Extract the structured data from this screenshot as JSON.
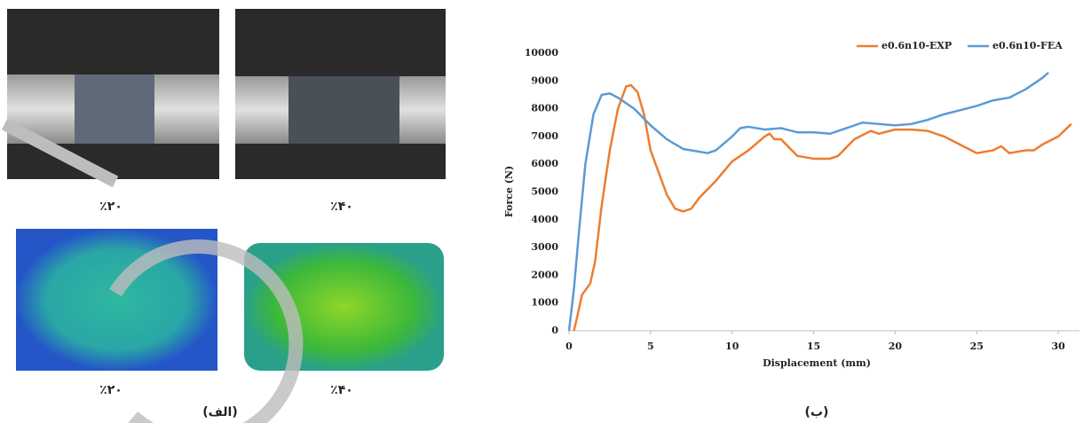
{
  "figure": {
    "left_labels": [
      "٪۲۰",
      "٪۴۰",
      "٪۲۰",
      "٪۴۰"
    ],
    "left_caption": "(الف)",
    "right_caption": "(ب)"
  },
  "chart_data": {
    "type": "line",
    "x_label": "Displacement (mm)",
    "y_label": "Force (N)",
    "xlim": [
      0,
      31.3
    ],
    "xticks": [
      0,
      5,
      10,
      15,
      20,
      25,
      30
    ],
    "ylim": [
      0,
      10000
    ],
    "yticks": [
      0,
      1000,
      2000,
      3000,
      4000,
      5000,
      6000,
      7000,
      8000,
      9000,
      10000
    ],
    "grid": false,
    "legend": "top-right",
    "series": [
      {
        "name": "e0.6n10-EXP",
        "color": "#ed7d31",
        "x": [
          0.3,
          0.5,
          0.8,
          1.3,
          1.6,
          2.0,
          2.5,
          3.0,
          3.5,
          3.8,
          4.2,
          4.6,
          5.0,
          5.5,
          6.0,
          6.5,
          7.0,
          7.5,
          8.0,
          9.0,
          10.0,
          11.0,
          12.0,
          12.3,
          12.6,
          13.0,
          14.0,
          15.0,
          16.0,
          16.5,
          17.5,
          18.5,
          19.0,
          20.0,
          21.0,
          22.0,
          23.0,
          24.0,
          25.0,
          26.0,
          26.5,
          27.0,
          28.0,
          28.5,
          29.0,
          30.0,
          30.8
        ],
        "values": [
          0,
          500,
          1300,
          1700,
          2500,
          4500,
          6500,
          8000,
          8800,
          8850,
          8600,
          7800,
          6500,
          5700,
          4900,
          4400,
          4300,
          4400,
          4800,
          5400,
          6100,
          6500,
          7000,
          7100,
          6900,
          6900,
          6300,
          6200,
          6200,
          6300,
          6900,
          7200,
          7100,
          7250,
          7250,
          7200,
          7000,
          6700,
          6400,
          6500,
          6650,
          6400,
          6500,
          6500,
          6700,
          7000,
          7450
        ]
      },
      {
        "name": "e0.6n10-FEA",
        "color": "#5b9bd5",
        "x": [
          0,
          0.3,
          0.6,
          1.0,
          1.5,
          2.0,
          2.5,
          3.0,
          4.0,
          5.0,
          6.0,
          7.0,
          8.0,
          8.5,
          9.0,
          10.0,
          10.5,
          11.0,
          12.0,
          13.0,
          14.0,
          15.0,
          16.0,
          17.0,
          18.0,
          19.0,
          20.0,
          21.0,
          22.0,
          23.0,
          24.0,
          25.0,
          26.0,
          27.0,
          28.0,
          29.0,
          29.4
        ],
        "values": [
          0,
          1500,
          3500,
          6000,
          7800,
          8500,
          8550,
          8400,
          8000,
          7400,
          6900,
          6550,
          6450,
          6400,
          6500,
          7000,
          7300,
          7350,
          7250,
          7300,
          7150,
          7150,
          7100,
          7300,
          7500,
          7450,
          7400,
          7450,
          7600,
          7800,
          7950,
          8100,
          8300,
          8400,
          8700,
          9100,
          9300
        ]
      }
    ]
  }
}
